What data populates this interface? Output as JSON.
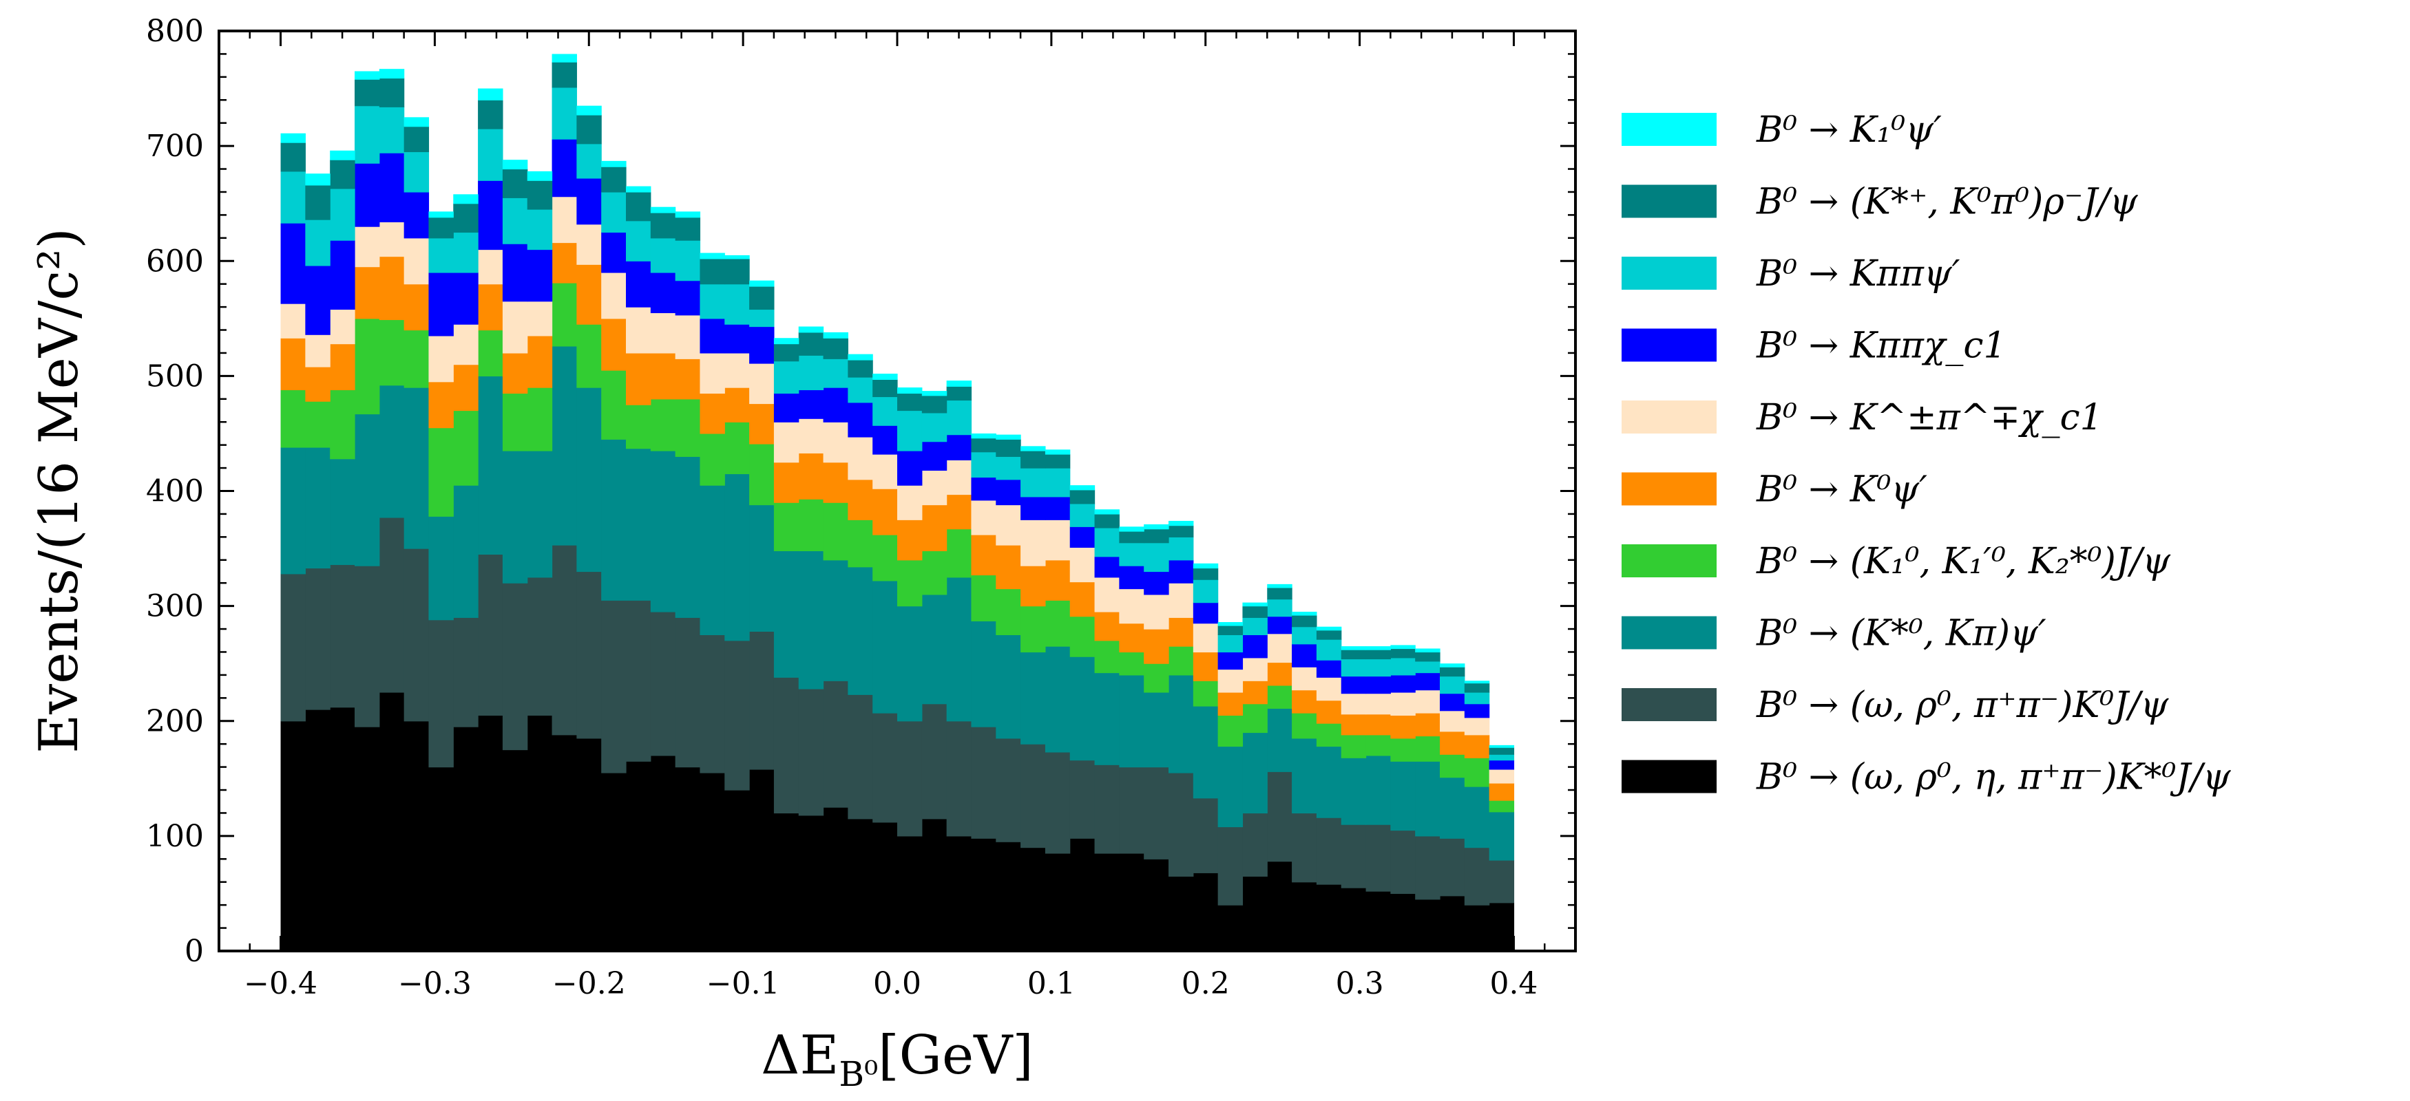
{
  "chart_data": {
    "type": "bar",
    "stacked": true,
    "histogram": true,
    "title": "",
    "xlabel": "ΔE_{B⁰}[GeV]",
    "xlabel_main": "ΔE",
    "xlabel_sub": "B⁰",
    "xlabel_unit": "[GeV]",
    "ylabel": "Events/(16 MeV/c²)",
    "xlim": [
      -0.44,
      0.44
    ],
    "ylim": [
      0,
      800
    ],
    "x_ticks": [
      -0.4,
      -0.3,
      -0.2,
      -0.1,
      0.0,
      0.1,
      0.2,
      0.3,
      0.4
    ],
    "x_tick_labels": [
      "−0.4",
      "−0.3",
      "−0.2",
      "−0.1",
      "0.0",
      "0.1",
      "0.2",
      "0.3",
      "0.4"
    ],
    "y_ticks": [
      0,
      100,
      200,
      300,
      400,
      500,
      600,
      700,
      800
    ],
    "y_tick_labels": [
      "0",
      "100",
      "200",
      "300",
      "400",
      "500",
      "600",
      "700",
      "800"
    ],
    "grid": false,
    "legend_position": "right",
    "bin_width": 0.016,
    "bin_edges": [
      -0.4,
      -0.384,
      -0.368,
      -0.352,
      -0.336,
      -0.32,
      -0.304,
      -0.288,
      -0.272,
      -0.256,
      -0.24,
      -0.224,
      -0.208,
      -0.192,
      -0.176,
      -0.16,
      -0.144,
      -0.128,
      -0.112,
      -0.096,
      -0.08,
      -0.064,
      -0.048,
      -0.032,
      -0.016,
      0.0,
      0.016,
      0.032,
      0.048,
      0.064,
      0.08,
      0.096,
      0.112,
      0.128,
      0.144,
      0.16,
      0.176,
      0.192,
      0.208,
      0.224,
      0.24,
      0.256,
      0.272,
      0.288,
      0.304,
      0.32,
      0.336,
      0.352,
      0.368,
      0.384,
      0.4
    ],
    "series": [
      {
        "name": "B⁰ → (ω, ρ⁰, η, π⁺π⁻)K*⁰J/ψ",
        "color": "#000000",
        "values": [
          200,
          210,
          212,
          195,
          225,
          200,
          160,
          195,
          205,
          175,
          205,
          188,
          185,
          155,
          165,
          170,
          160,
          155,
          140,
          158,
          120,
          118,
          125,
          115,
          112,
          100,
          115,
          100,
          98,
          95,
          90,
          85,
          98,
          85,
          85,
          80,
          65,
          68,
          40,
          65,
          78,
          60,
          58,
          55,
          52,
          50,
          45,
          48,
          40,
          42
        ]
      },
      {
        "name": "B⁰ → (ω, ρ⁰, π⁺π⁻)K⁰J/ψ",
        "color": "#2f4f4f",
        "values": [
          128,
          123,
          124,
          140,
          152,
          150,
          128,
          95,
          140,
          145,
          120,
          165,
          145,
          150,
          140,
          125,
          130,
          120,
          130,
          120,
          118,
          110,
          110,
          108,
          95,
          100,
          100,
          100,
          97,
          90,
          90,
          88,
          68,
          77,
          75,
          80,
          90,
          65,
          68,
          55,
          78,
          60,
          58,
          55,
          58,
          55,
          55,
          50,
          50,
          37
        ]
      },
      {
        "name": "B⁰ → (K*⁰, Kπ)ψ′",
        "color": "#008b8b",
        "values": [
          110,
          105,
          92,
          132,
          115,
          140,
          90,
          115,
          155,
          115,
          110,
          173,
          160,
          140,
          132,
          140,
          140,
          130,
          145,
          110,
          110,
          120,
          105,
          111,
          115,
          100,
          95,
          125,
          92,
          90,
          80,
          92,
          90,
          80,
          80,
          65,
          85,
          80,
          70,
          70,
          55,
          65,
          62,
          58,
          60,
          60,
          65,
          53,
          53,
          42
        ]
      },
      {
        "name": "B⁰ → (K₁⁰, K₁′⁰, K₂*⁰)J/ψ",
        "color": "#32cd32",
        "values": [
          50,
          40,
          60,
          83,
          57,
          50,
          77,
          65,
          40,
          50,
          55,
          55,
          55,
          60,
          38,
          45,
          50,
          45,
          45,
          53,
          42,
          45,
          50,
          41,
          40,
          40,
          38,
          42,
          40,
          40,
          40,
          40,
          35,
          28,
          20,
          25,
          25,
          22,
          27,
          25,
          20,
          22,
          20,
          20,
          18,
          20,
          22,
          20,
          25,
          10
        ]
      },
      {
        "name": "B⁰ → K⁰ψ′",
        "color": "#ff8c00",
        "values": [
          45,
          30,
          40,
          45,
          55,
          40,
          40,
          40,
          40,
          35,
          45,
          35,
          52,
          45,
          45,
          40,
          35,
          35,
          30,
          35,
          35,
          40,
          35,
          35,
          40,
          35,
          40,
          30,
          35,
          38,
          35,
          35,
          30,
          25,
          25,
          30,
          25,
          25,
          20,
          20,
          20,
          20,
          20,
          18,
          18,
          20,
          20,
          20,
          20,
          15
        ]
      },
      {
        "name": "B⁰ → K^±π^∓χ_c1",
        "color": "#ffe4c4",
        "values": [
          30,
          28,
          30,
          35,
          30,
          40,
          40,
          35,
          30,
          45,
          30,
          40,
          35,
          40,
          40,
          35,
          38,
          35,
          30,
          35,
          35,
          30,
          35,
          37,
          30,
          30,
          30,
          30,
          30,
          35,
          40,
          35,
          30,
          30,
          30,
          30,
          30,
          25,
          20,
          20,
          25,
          20,
          20,
          18,
          18,
          20,
          20,
          18,
          15,
          12
        ]
      },
      {
        "name": "B⁰ → Kππχ_c1",
        "color": "#0000ff",
        "values": [
          70,
          60,
          60,
          55,
          60,
          40,
          55,
          45,
          60,
          50,
          45,
          50,
          40,
          35,
          40,
          35,
          30,
          30,
          25,
          32,
          25,
          25,
          30,
          30,
          25,
          30,
          25,
          22,
          20,
          22,
          20,
          20,
          18,
          18,
          20,
          20,
          20,
          18,
          15,
          20,
          15,
          20,
          15,
          15,
          15,
          15,
          15,
          15,
          12,
          8
        ]
      },
      {
        "name": "B⁰ → Kππψ′",
        "color": "#00ced1",
        "values": [
          45,
          40,
          45,
          50,
          40,
          35,
          30,
          35,
          45,
          40,
          35,
          45,
          30,
          35,
          35,
          30,
          35,
          30,
          35,
          15,
          28,
          30,
          25,
          22,
          25,
          35,
          25,
          30,
          22,
          20,
          25,
          25,
          20,
          25,
          20,
          25,
          20,
          20,
          15,
          15,
          15,
          15,
          18,
          15,
          15,
          15,
          10,
          15,
          10,
          5
        ]
      },
      {
        "name": "B⁰ → (K*⁺, K⁰π⁰)ρ⁻J/ψ",
        "color": "#008080",
        "values": [
          25,
          30,
          25,
          23,
          25,
          22,
          18,
          25,
          25,
          25,
          25,
          22,
          25,
          22,
          25,
          22,
          20,
          22,
          22,
          20,
          15,
          20,
          18,
          15,
          15,
          15,
          15,
          12,
          12,
          15,
          15,
          12,
          12,
          12,
          10,
          12,
          10,
          10,
          8,
          10,
          10,
          10,
          8,
          8,
          8,
          8,
          8,
          8,
          8,
          6
        ]
      },
      {
        "name": "B⁰ → K₁⁰ψ′",
        "color": "#00ffff",
        "values": [
          8,
          10,
          8,
          7,
          8,
          8,
          5,
          8,
          10,
          8,
          8,
          7,
          8,
          5,
          5,
          5,
          5,
          5,
          3,
          5,
          5,
          5,
          5,
          5,
          5,
          5,
          4,
          5,
          4,
          4,
          4,
          4,
          4,
          4,
          4,
          4,
          4,
          4,
          3,
          3,
          3,
          3,
          3,
          3,
          3,
          3,
          3,
          3,
          2,
          2
        ]
      }
    ]
  },
  "legend": {
    "order": [
      9,
      8,
      7,
      6,
      5,
      4,
      3,
      2,
      1,
      0
    ]
  }
}
